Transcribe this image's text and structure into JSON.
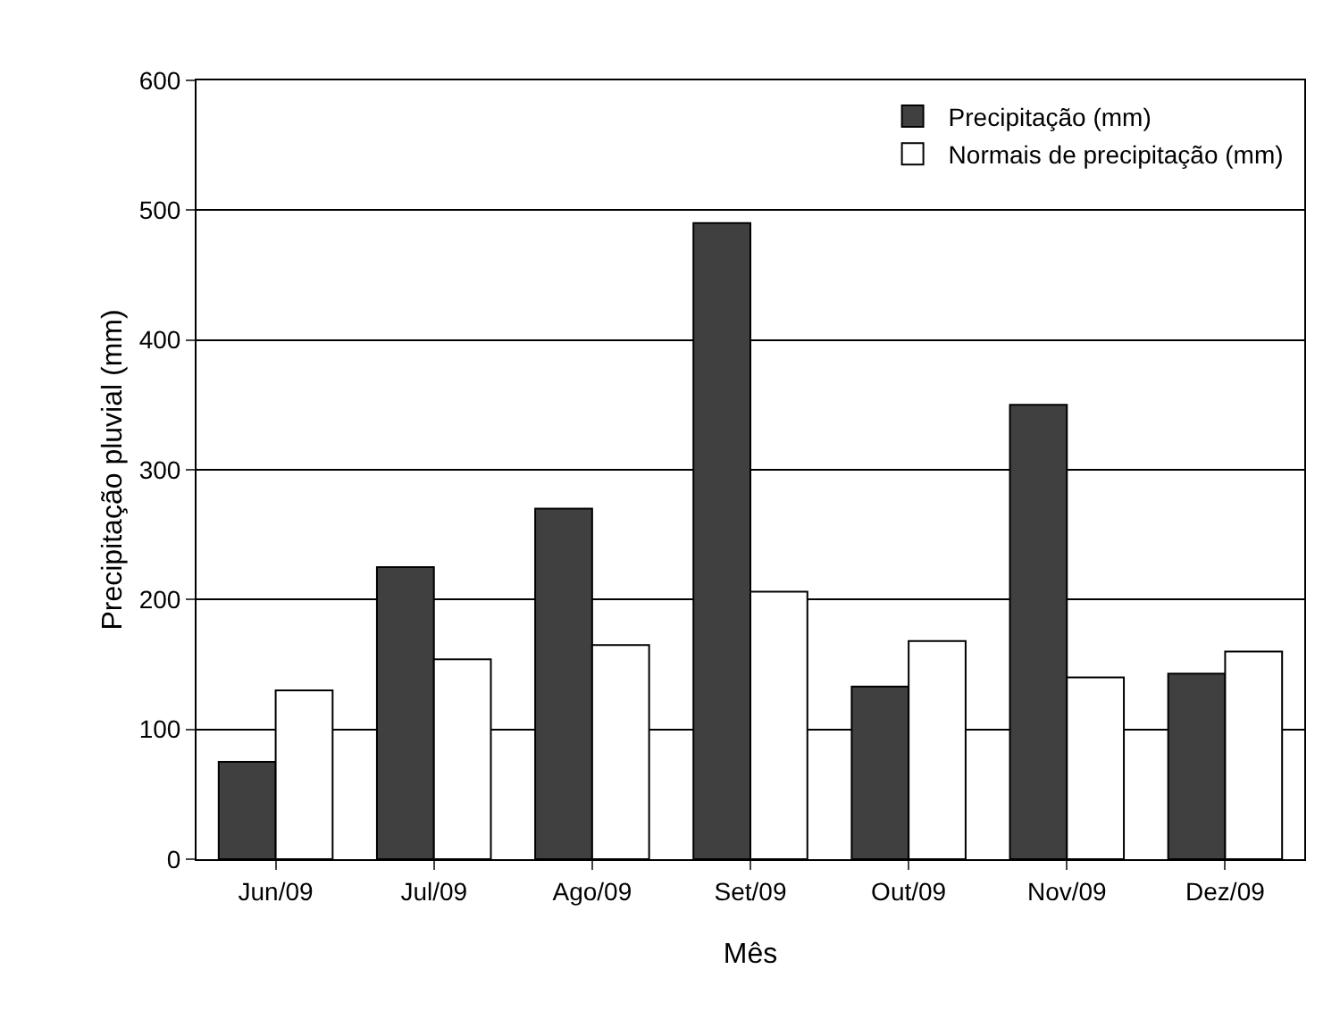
{
  "chart_data": {
    "type": "bar",
    "xlabel": "Mês",
    "ylabel": "Precipitação pluvial (mm)",
    "categories": [
      "Jun/09",
      "Jul/09",
      "Ago/09",
      "Set/09",
      "Out/09",
      "Nov/09",
      "Dez/09"
    ],
    "series": [
      {
        "name": "Precipitação (mm)",
        "color": "#404040",
        "values": [
          75,
          225,
          270,
          490,
          133,
          350,
          143
        ]
      },
      {
        "name": "Normais de precipitação (mm)",
        "color": "#ffffff",
        "values": [
          130,
          154,
          165,
          206,
          168,
          140,
          160
        ]
      }
    ],
    "ylim": [
      0,
      600
    ],
    "yticks": [
      0,
      100,
      200,
      300,
      400,
      500,
      600
    ],
    "grid": "y",
    "legend": "top right"
  }
}
